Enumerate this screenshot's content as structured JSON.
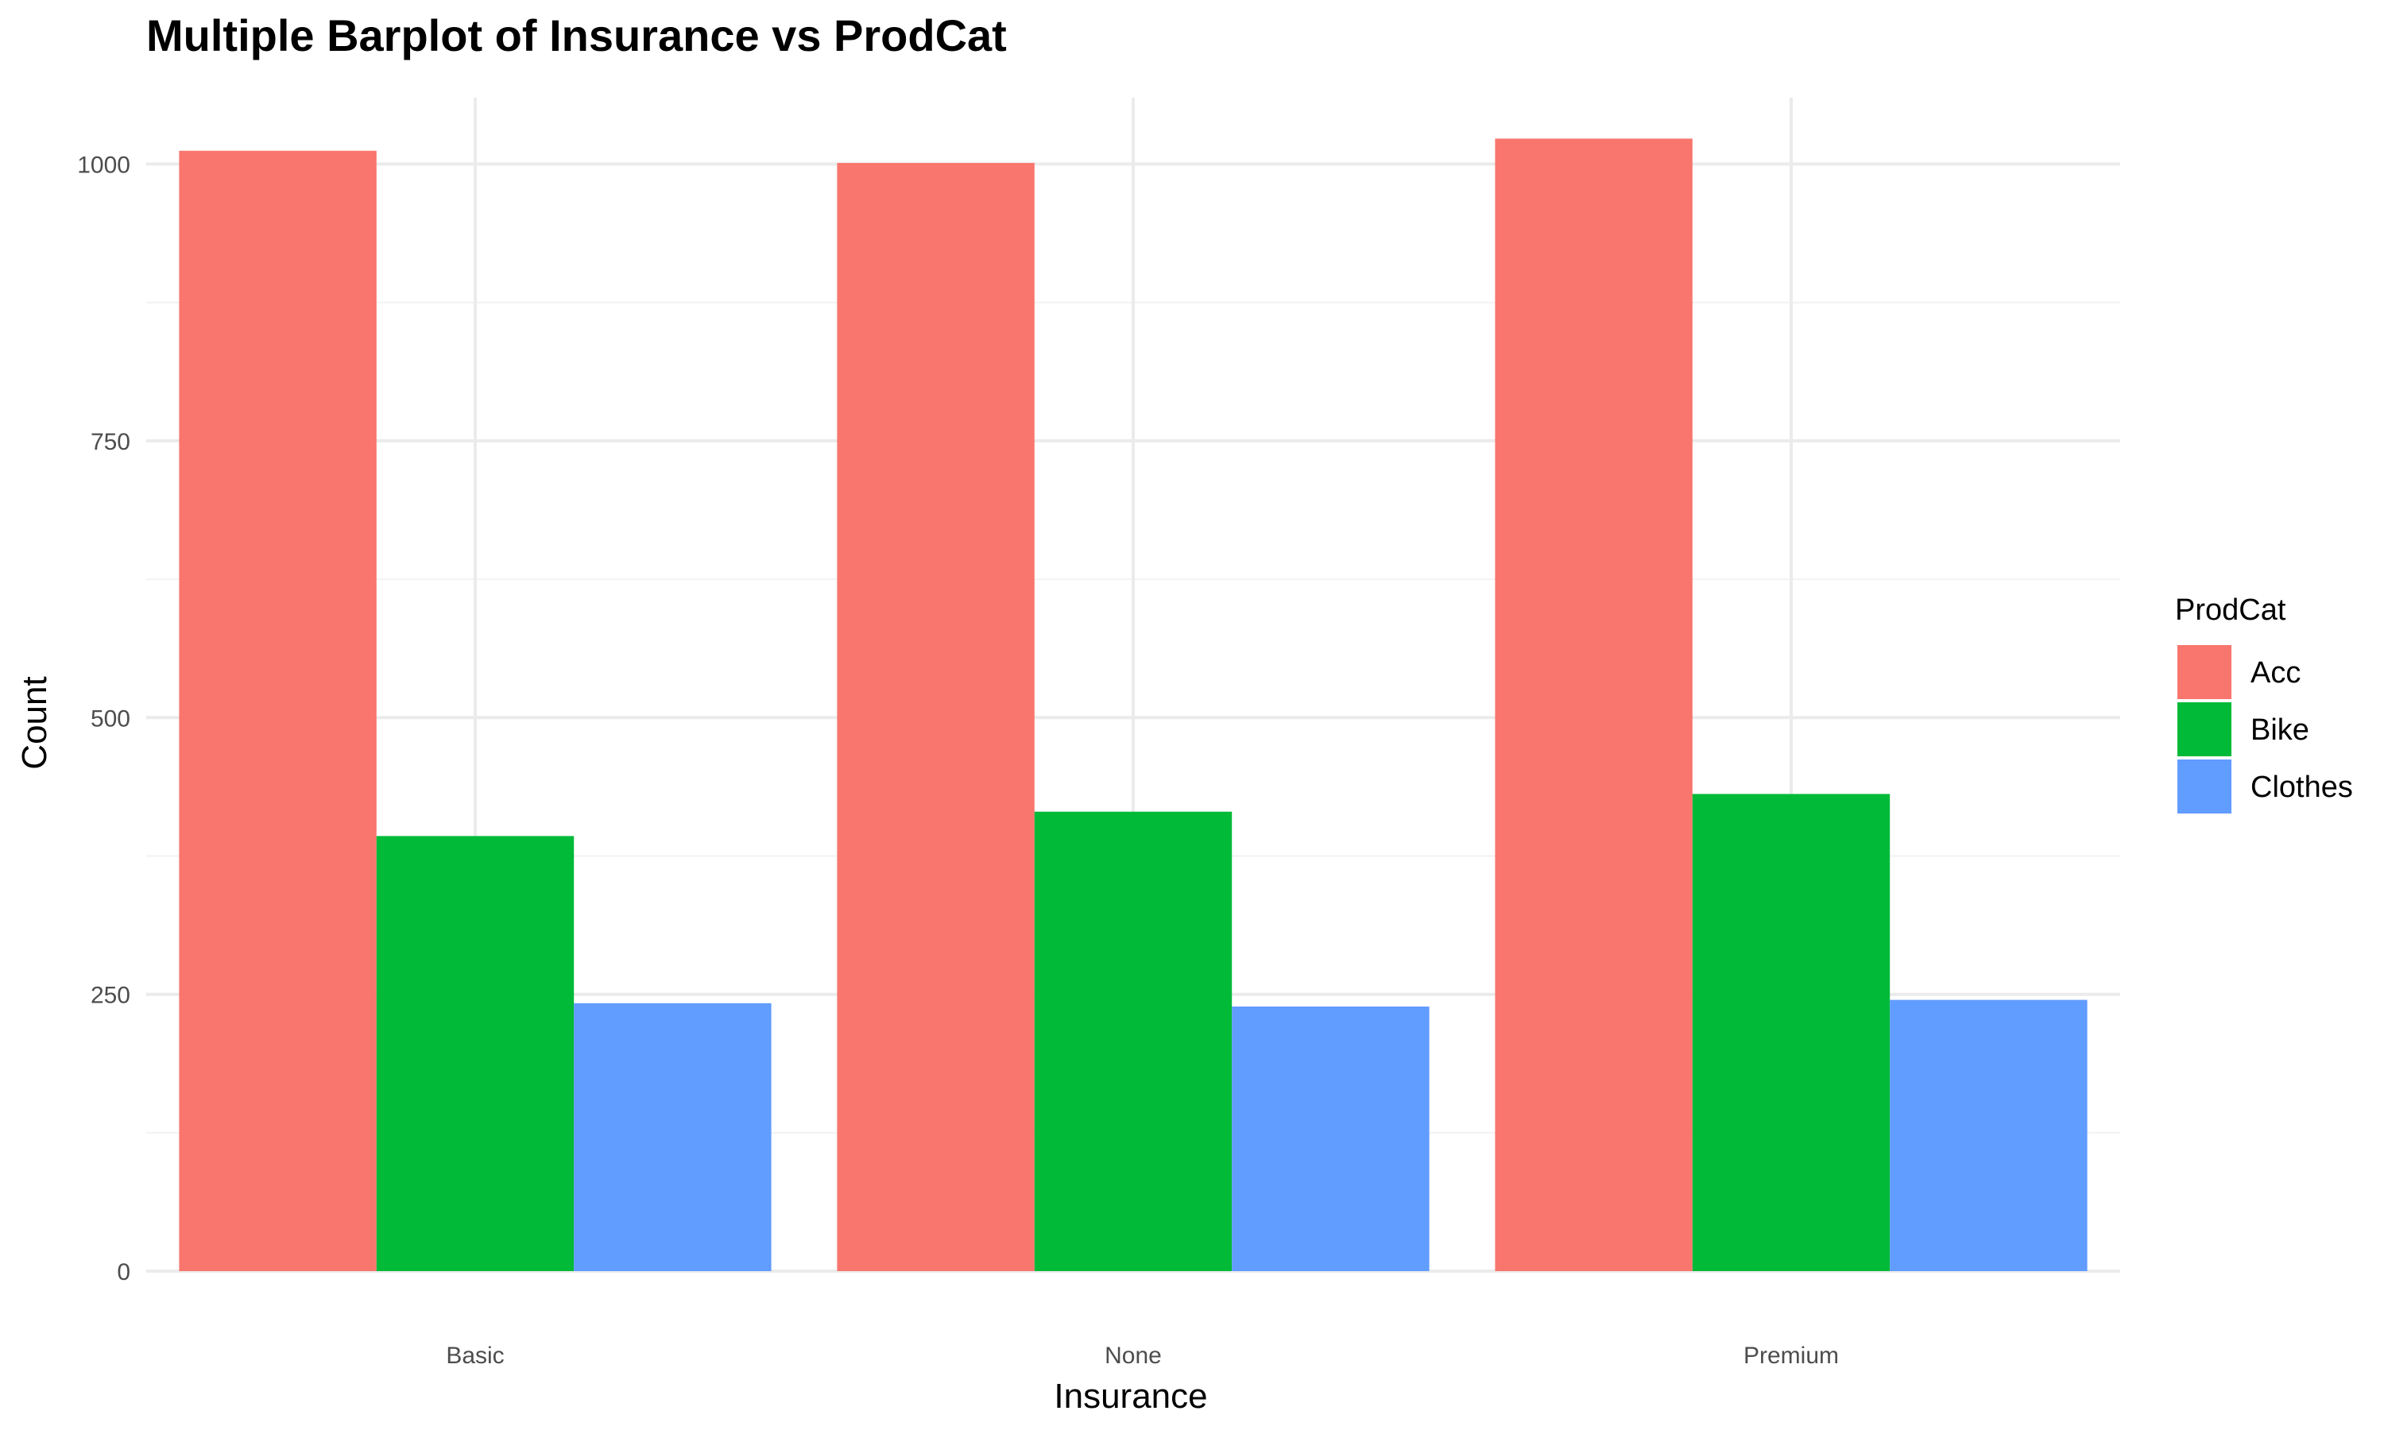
{
  "chart_data": {
    "type": "bar",
    "title": "Multiple Barplot of Insurance vs ProdCat",
    "xlabel": "Insurance",
    "ylabel": "Count",
    "categories": [
      "Basic",
      "None",
      "Premium"
    ],
    "series": [
      {
        "name": "Acc",
        "color": "#F8766D",
        "values": [
          1012,
          1001,
          1023
        ]
      },
      {
        "name": "Bike",
        "color": "#00BA38",
        "values": [
          393,
          415,
          431
        ]
      },
      {
        "name": "Clothes",
        "color": "#619CFF",
        "values": [
          242,
          239,
          245
        ]
      }
    ],
    "ylim": [
      0,
      1060
    ],
    "yticks": [
      0,
      250,
      500,
      750,
      1000
    ],
    "grid": true,
    "legend": {
      "title": "ProdCat",
      "position": "right"
    }
  }
}
